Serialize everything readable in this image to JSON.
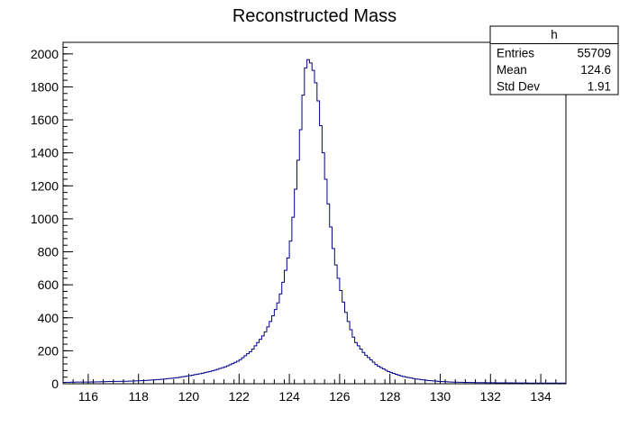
{
  "chart_data": {
    "type": "histogram",
    "title": "Reconstructed Mass",
    "xlabel": "",
    "ylabel": "",
    "xlim": [
      115,
      135
    ],
    "ylim": [
      0,
      2070
    ],
    "x_ticks": [
      116,
      118,
      120,
      122,
      124,
      126,
      128,
      130,
      132,
      134
    ],
    "y_ticks": [
      0,
      200,
      400,
      600,
      800,
      1000,
      1200,
      1400,
      1600,
      1800,
      2000
    ],
    "bin_width": 0.1,
    "line_color": "#00008b",
    "bins": [
      [
        115.0,
        8
      ],
      [
        115.5,
        10
      ],
      [
        116.0,
        10
      ],
      [
        116.5,
        12
      ],
      [
        117.0,
        14
      ],
      [
        117.5,
        15
      ],
      [
        118.0,
        18
      ],
      [
        118.5,
        22
      ],
      [
        119.0,
        28
      ],
      [
        119.5,
        36
      ],
      [
        120.0,
        48
      ],
      [
        120.5,
        62
      ],
      [
        121.0,
        80
      ],
      [
        121.5,
        105
      ],
      [
        122.0,
        140
      ],
      [
        122.5,
        200
      ],
      [
        123.0,
        300
      ],
      [
        123.2,
        360
      ],
      [
        123.4,
        430
      ],
      [
        123.6,
        510
      ],
      [
        123.8,
        650
      ],
      [
        124.0,
        800
      ],
      [
        124.1,
        930
      ],
      [
        124.2,
        1090
      ],
      [
        124.3,
        1270
      ],
      [
        124.4,
        1440
      ],
      [
        124.5,
        1640
      ],
      [
        124.6,
        1860
      ],
      [
        124.7,
        1970
      ],
      [
        124.8,
        1960
      ],
      [
        124.9,
        1930
      ],
      [
        125.0,
        1870
      ],
      [
        125.1,
        1780
      ],
      [
        125.2,
        1650
      ],
      [
        125.3,
        1480
      ],
      [
        125.4,
        1320
      ],
      [
        125.5,
        1160
      ],
      [
        125.6,
        1020
      ],
      [
        125.7,
        880
      ],
      [
        125.8,
        760
      ],
      [
        126.0,
        600
      ],
      [
        126.2,
        460
      ],
      [
        126.4,
        350
      ],
      [
        126.6,
        260
      ],
      [
        127.0,
        180
      ],
      [
        127.5,
        110
      ],
      [
        128.0,
        70
      ],
      [
        128.5,
        45
      ],
      [
        129.0,
        30
      ],
      [
        129.5,
        20
      ],
      [
        130.0,
        14
      ],
      [
        130.5,
        10
      ],
      [
        131.0,
        8
      ],
      [
        132.0,
        6
      ],
      [
        133.0,
        5
      ],
      [
        134.0,
        4
      ],
      [
        135.0,
        4
      ]
    ]
  },
  "stats_box": {
    "name": "h",
    "rows": [
      {
        "label": "Entries",
        "value": "55709"
      },
      {
        "label": "Mean",
        "value": "124.6"
      },
      {
        "label": "Std Dev",
        "value": "1.91"
      }
    ]
  }
}
